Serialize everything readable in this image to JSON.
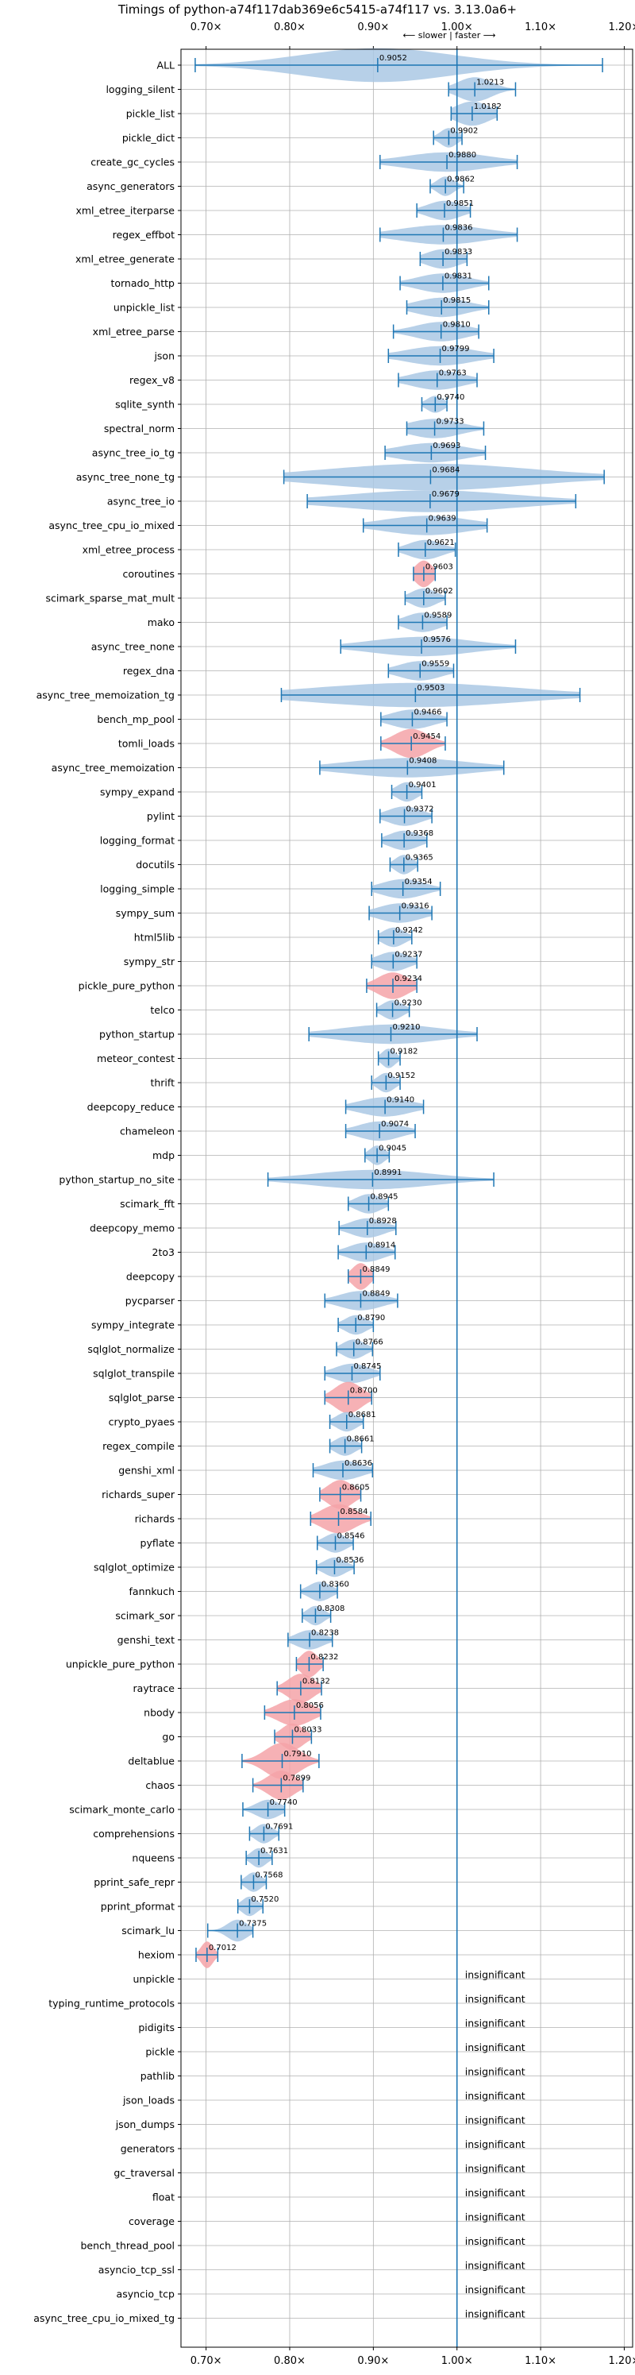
{
  "chart_data": {
    "type": "violin",
    "title": "Timings of python-a74f117dab369e6c5415-a74f117 vs. 3.13.0a6+",
    "xlim": [
      0.67,
      1.21
    ],
    "xticks": [
      0.7,
      0.8,
      0.9,
      1.0,
      1.1,
      1.2
    ],
    "xtick_labels": [
      "0.70×",
      "0.80×",
      "0.90×",
      "1.00×",
      "1.10×",
      "1.20×"
    ],
    "reference_line": 1.0,
    "direction_label": "⟵ slower | faster ⟶",
    "grid": true,
    "colors": {
      "normal": "#aac8e4",
      "slower": "#f4a3a8",
      "line": "#1f77b4",
      "grid": "#b0b0b0"
    },
    "benchmarks": [
      {
        "name": "ALL",
        "mean": 0.9052,
        "lo": 0.687,
        "hi": 1.174,
        "spread": 0.09,
        "width": 0.7,
        "color": "normal",
        "label": "0.9052"
      },
      {
        "name": "logging_silent",
        "mean": 1.0213,
        "lo": 0.99,
        "hi": 1.07,
        "spread": 0.02,
        "width": 0.5,
        "color": "normal",
        "label": "1.0213"
      },
      {
        "name": "pickle_list",
        "mean": 1.0182,
        "lo": 0.993,
        "hi": 1.048,
        "spread": 0.02,
        "width": 0.5,
        "color": "normal",
        "label": "1.0182"
      },
      {
        "name": "pickle_dict",
        "mean": 0.9902,
        "lo": 0.972,
        "hi": 1.006,
        "spread": 0.01,
        "width": 0.4,
        "color": "normal",
        "label": "0.9902"
      },
      {
        "name": "create_gc_cycles",
        "mean": 0.988,
        "lo": 0.908,
        "hi": 1.072,
        "spread": 0.05,
        "width": 0.4,
        "color": "normal",
        "label": "0.9880"
      },
      {
        "name": "async_generators",
        "mean": 0.9862,
        "lo": 0.968,
        "hi": 1.008,
        "spread": 0.01,
        "width": 0.4,
        "color": "normal",
        "label": "0.9862"
      },
      {
        "name": "xml_etree_iterparse",
        "mean": 0.9851,
        "lo": 0.952,
        "hi": 1.016,
        "spread": 0.02,
        "width": 0.4,
        "color": "normal",
        "label": "0.9851"
      },
      {
        "name": "regex_effbot",
        "mean": 0.9836,
        "lo": 0.908,
        "hi": 1.072,
        "spread": 0.05,
        "width": 0.4,
        "color": "normal",
        "label": "0.9836"
      },
      {
        "name": "xml_etree_generate",
        "mean": 0.9833,
        "lo": 0.956,
        "hi": 1.012,
        "spread": 0.02,
        "width": 0.4,
        "color": "normal",
        "label": "0.9833"
      },
      {
        "name": "tornado_http",
        "mean": 0.9831,
        "lo": 0.932,
        "hi": 1.038,
        "spread": 0.03,
        "width": 0.4,
        "color": "normal",
        "label": "0.9831"
      },
      {
        "name": "unpickle_list",
        "mean": 0.9815,
        "lo": 0.94,
        "hi": 1.038,
        "spread": 0.03,
        "width": 0.4,
        "color": "normal",
        "label": "0.9815"
      },
      {
        "name": "xml_etree_parse",
        "mean": 0.981,
        "lo": 0.924,
        "hi": 1.026,
        "spread": 0.03,
        "width": 0.4,
        "color": "normal",
        "label": "0.9810"
      },
      {
        "name": "json",
        "mean": 0.9799,
        "lo": 0.918,
        "hi": 1.044,
        "spread": 0.04,
        "width": 0.4,
        "color": "normal",
        "label": "0.9799"
      },
      {
        "name": "regex_v8",
        "mean": 0.9763,
        "lo": 0.93,
        "hi": 1.024,
        "spread": 0.03,
        "width": 0.4,
        "color": "normal",
        "label": "0.9763"
      },
      {
        "name": "sqlite_synth",
        "mean": 0.974,
        "lo": 0.958,
        "hi": 0.988,
        "spread": 0.01,
        "width": 0.35,
        "color": "normal",
        "label": "0.9740"
      },
      {
        "name": "spectral_norm",
        "mean": 0.9733,
        "lo": 0.94,
        "hi": 1.032,
        "spread": 0.03,
        "width": 0.4,
        "color": "normal",
        "label": "0.9733"
      },
      {
        "name": "async_tree_io_tg",
        "mean": 0.9693,
        "lo": 0.914,
        "hi": 1.034,
        "spread": 0.04,
        "width": 0.4,
        "color": "normal",
        "label": "0.9693"
      },
      {
        "name": "async_tree_none_tg",
        "mean": 0.9684,
        "lo": 0.793,
        "hi": 1.176,
        "spread": 0.12,
        "width": 0.55,
        "color": "normal",
        "label": "0.9684"
      },
      {
        "name": "async_tree_io",
        "mean": 0.9679,
        "lo": 0.821,
        "hi": 1.142,
        "spread": 0.1,
        "width": 0.45,
        "color": "normal",
        "label": "0.9679"
      },
      {
        "name": "async_tree_cpu_io_mixed",
        "mean": 0.9639,
        "lo": 0.888,
        "hi": 1.036,
        "spread": 0.05,
        "width": 0.4,
        "color": "normal",
        "label": "0.9639"
      },
      {
        "name": "xml_etree_process",
        "mean": 0.9621,
        "lo": 0.93,
        "hi": 0.998,
        "spread": 0.02,
        "width": 0.4,
        "color": "normal",
        "label": "0.9621"
      },
      {
        "name": "coroutines",
        "mean": 0.9603,
        "lo": 0.948,
        "hi": 0.974,
        "spread": 0.01,
        "width": 0.55,
        "color": "slower",
        "label": "0.9603"
      },
      {
        "name": "scimark_sparse_mat_mult",
        "mean": 0.9602,
        "lo": 0.938,
        "hi": 0.986,
        "spread": 0.015,
        "width": 0.4,
        "color": "normal",
        "label": "0.9602"
      },
      {
        "name": "mako",
        "mean": 0.9589,
        "lo": 0.93,
        "hi": 0.988,
        "spread": 0.02,
        "width": 0.4,
        "color": "normal",
        "label": "0.9589"
      },
      {
        "name": "async_tree_none",
        "mean": 0.9576,
        "lo": 0.861,
        "hi": 1.07,
        "spread": 0.06,
        "width": 0.4,
        "color": "normal",
        "label": "0.9576"
      },
      {
        "name": "regex_dna",
        "mean": 0.9559,
        "lo": 0.918,
        "hi": 0.996,
        "spread": 0.025,
        "width": 0.4,
        "color": "normal",
        "label": "0.9559"
      },
      {
        "name": "async_tree_memoization_tg",
        "mean": 0.9503,
        "lo": 0.79,
        "hi": 1.147,
        "spread": 0.12,
        "width": 0.5,
        "color": "normal",
        "label": "0.9503"
      },
      {
        "name": "bench_mp_pool",
        "mean": 0.9466,
        "lo": 0.909,
        "hi": 0.988,
        "spread": 0.025,
        "width": 0.4,
        "color": "normal",
        "label": "0.9466"
      },
      {
        "name": "tomli_loads",
        "mean": 0.9454,
        "lo": 0.909,
        "hi": 0.986,
        "spread": 0.02,
        "width": 0.6,
        "color": "slower",
        "label": "0.9454"
      },
      {
        "name": "async_tree_memoization",
        "mean": 0.9408,
        "lo": 0.836,
        "hi": 1.056,
        "spread": 0.07,
        "width": 0.4,
        "color": "normal",
        "label": "0.9408"
      },
      {
        "name": "sympy_expand",
        "mean": 0.9401,
        "lo": 0.922,
        "hi": 0.958,
        "spread": 0.012,
        "width": 0.4,
        "color": "normal",
        "label": "0.9401"
      },
      {
        "name": "pylint",
        "mean": 0.9372,
        "lo": 0.908,
        "hi": 0.97,
        "spread": 0.02,
        "width": 0.4,
        "color": "normal",
        "label": "0.9372"
      },
      {
        "name": "logging_format",
        "mean": 0.9368,
        "lo": 0.91,
        "hi": 0.964,
        "spread": 0.018,
        "width": 0.4,
        "color": "normal",
        "label": "0.9368"
      },
      {
        "name": "docutils",
        "mean": 0.9365,
        "lo": 0.92,
        "hi": 0.953,
        "spread": 0.01,
        "width": 0.4,
        "color": "normal",
        "label": "0.9365"
      },
      {
        "name": "logging_simple",
        "mean": 0.9354,
        "lo": 0.898,
        "hi": 0.98,
        "spread": 0.025,
        "width": 0.4,
        "color": "normal",
        "label": "0.9354"
      },
      {
        "name": "sympy_sum",
        "mean": 0.9316,
        "lo": 0.895,
        "hi": 0.97,
        "spread": 0.025,
        "width": 0.4,
        "color": "normal",
        "label": "0.9316"
      },
      {
        "name": "html5lib",
        "mean": 0.9242,
        "lo": 0.906,
        "hi": 0.946,
        "spread": 0.013,
        "width": 0.4,
        "color": "normal",
        "label": "0.9242"
      },
      {
        "name": "sympy_str",
        "mean": 0.9237,
        "lo": 0.898,
        "hi": 0.952,
        "spread": 0.018,
        "width": 0.4,
        "color": "normal",
        "label": "0.9237"
      },
      {
        "name": "pickle_pure_python",
        "mean": 0.9234,
        "lo": 0.892,
        "hi": 0.952,
        "spread": 0.018,
        "width": 0.55,
        "color": "slower",
        "label": "0.9234"
      },
      {
        "name": "telco",
        "mean": 0.923,
        "lo": 0.904,
        "hi": 0.943,
        "spread": 0.012,
        "width": 0.4,
        "color": "normal",
        "label": "0.9230"
      },
      {
        "name": "python_startup",
        "mean": 0.921,
        "lo": 0.823,
        "hi": 1.024,
        "spread": 0.06,
        "width": 0.4,
        "color": "normal",
        "label": "0.9210"
      },
      {
        "name": "meteor_contest",
        "mean": 0.9182,
        "lo": 0.906,
        "hi": 0.932,
        "spread": 0.008,
        "width": 0.4,
        "color": "normal",
        "label": "0.9182"
      },
      {
        "name": "thrift",
        "mean": 0.9152,
        "lo": 0.898,
        "hi": 0.932,
        "spread": 0.01,
        "width": 0.4,
        "color": "normal",
        "label": "0.9152"
      },
      {
        "name": "deepcopy_reduce",
        "mean": 0.914,
        "lo": 0.867,
        "hi": 0.96,
        "spread": 0.03,
        "width": 0.4,
        "color": "normal",
        "label": "0.9140"
      },
      {
        "name": "chameleon",
        "mean": 0.9074,
        "lo": 0.867,
        "hi": 0.95,
        "spread": 0.025,
        "width": 0.4,
        "color": "normal",
        "label": "0.9074"
      },
      {
        "name": "mdp",
        "mean": 0.9045,
        "lo": 0.89,
        "hi": 0.919,
        "spread": 0.009,
        "width": 0.4,
        "color": "normal",
        "label": "0.9045"
      },
      {
        "name": "python_startup_no_site",
        "mean": 0.8991,
        "lo": 0.774,
        "hi": 1.044,
        "spread": 0.07,
        "width": 0.4,
        "color": "normal",
        "label": "0.8991"
      },
      {
        "name": "scimark_fft",
        "mean": 0.8945,
        "lo": 0.87,
        "hi": 0.918,
        "spread": 0.015,
        "width": 0.4,
        "color": "normal",
        "label": "0.8945"
      },
      {
        "name": "deepcopy_memo",
        "mean": 0.8928,
        "lo": 0.859,
        "hi": 0.927,
        "spread": 0.02,
        "width": 0.4,
        "color": "normal",
        "label": "0.8928"
      },
      {
        "name": "2to3",
        "mean": 0.8914,
        "lo": 0.858,
        "hi": 0.926,
        "spread": 0.02,
        "width": 0.4,
        "color": "normal",
        "label": "0.8914"
      },
      {
        "name": "deepcopy",
        "mean": 0.8849,
        "lo": 0.87,
        "hi": 0.9,
        "spread": 0.01,
        "width": 0.55,
        "color": "slower",
        "label": "0.8849"
      },
      {
        "name": "pycparser",
        "mean": 0.8849,
        "lo": 0.842,
        "hi": 0.929,
        "spread": 0.025,
        "width": 0.4,
        "color": "normal",
        "label": "0.8849"
      },
      {
        "name": "sympy_integrate",
        "mean": 0.879,
        "lo": 0.858,
        "hi": 0.9,
        "spread": 0.013,
        "width": 0.4,
        "color": "normal",
        "label": "0.8790"
      },
      {
        "name": "sqlglot_normalize",
        "mean": 0.8766,
        "lo": 0.856,
        "hi": 0.899,
        "spread": 0.013,
        "width": 0.4,
        "color": "normal",
        "label": "0.8766"
      },
      {
        "name": "sqlglot_transpile",
        "mean": 0.8745,
        "lo": 0.842,
        "hi": 0.908,
        "spread": 0.02,
        "width": 0.4,
        "color": "normal",
        "label": "0.8745"
      },
      {
        "name": "sqlglot_parse",
        "mean": 0.87,
        "lo": 0.842,
        "hi": 0.898,
        "spread": 0.016,
        "width": 0.65,
        "color": "slower",
        "label": "0.8700"
      },
      {
        "name": "crypto_pyaes",
        "mean": 0.8681,
        "lo": 0.848,
        "hi": 0.888,
        "spread": 0.012,
        "width": 0.4,
        "color": "normal",
        "label": "0.8681"
      },
      {
        "name": "regex_compile",
        "mean": 0.8661,
        "lo": 0.848,
        "hi": 0.886,
        "spread": 0.012,
        "width": 0.4,
        "color": "normal",
        "label": "0.8661"
      },
      {
        "name": "genshi_xml",
        "mean": 0.8636,
        "lo": 0.828,
        "hi": 0.899,
        "spread": 0.022,
        "width": 0.4,
        "color": "normal",
        "label": "0.8636"
      },
      {
        "name": "richards_super",
        "mean": 0.8605,
        "lo": 0.836,
        "hi": 0.885,
        "spread": 0.015,
        "width": 0.6,
        "color": "slower",
        "label": "0.8605"
      },
      {
        "name": "richards",
        "mean": 0.8584,
        "lo": 0.825,
        "hi": 0.897,
        "spread": 0.02,
        "width": 0.6,
        "color": "slower",
        "label": "0.8584"
      },
      {
        "name": "pyflate",
        "mean": 0.8546,
        "lo": 0.833,
        "hi": 0.876,
        "spread": 0.013,
        "width": 0.4,
        "color": "normal",
        "label": "0.8546"
      },
      {
        "name": "sqlglot_optimize",
        "mean": 0.8536,
        "lo": 0.832,
        "hi": 0.877,
        "spread": 0.013,
        "width": 0.4,
        "color": "normal",
        "label": "0.8536"
      },
      {
        "name": "fannkuch",
        "mean": 0.836,
        "lo": 0.813,
        "hi": 0.857,
        "spread": 0.013,
        "width": 0.4,
        "color": "normal",
        "label": "0.8360"
      },
      {
        "name": "scimark_sor",
        "mean": 0.8308,
        "lo": 0.815,
        "hi": 0.849,
        "spread": 0.01,
        "width": 0.4,
        "color": "normal",
        "label": "0.8308"
      },
      {
        "name": "genshi_text",
        "mean": 0.8238,
        "lo": 0.798,
        "hi": 0.851,
        "spread": 0.016,
        "width": 0.4,
        "color": "normal",
        "label": "0.8238"
      },
      {
        "name": "unpickle_pure_python",
        "mean": 0.8232,
        "lo": 0.808,
        "hi": 0.84,
        "spread": 0.01,
        "width": 0.55,
        "color": "slower",
        "label": "0.8232"
      },
      {
        "name": "raytrace",
        "mean": 0.8132,
        "lo": 0.785,
        "hi": 0.838,
        "spread": 0.015,
        "width": 0.6,
        "color": "slower",
        "label": "0.8132"
      },
      {
        "name": "nbody",
        "mean": 0.8056,
        "lo": 0.77,
        "hi": 0.837,
        "spread": 0.02,
        "width": 0.55,
        "color": "slower",
        "label": "0.8056"
      },
      {
        "name": "go",
        "mean": 0.8033,
        "lo": 0.782,
        "hi": 0.826,
        "spread": 0.013,
        "width": 0.55,
        "color": "slower",
        "label": "0.8033"
      },
      {
        "name": "deltablue",
        "mean": 0.791,
        "lo": 0.743,
        "hi": 0.835,
        "spread": 0.02,
        "width": 0.75,
        "color": "slower",
        "label": "0.7910"
      },
      {
        "name": "chaos",
        "mean": 0.7899,
        "lo": 0.756,
        "hi": 0.816,
        "spread": 0.016,
        "width": 0.6,
        "color": "slower",
        "label": "0.7899"
      },
      {
        "name": "scimark_monte_carlo",
        "mean": 0.774,
        "lo": 0.744,
        "hi": 0.794,
        "spread": 0.014,
        "width": 0.4,
        "color": "normal",
        "label": "0.7740"
      },
      {
        "name": "comprehensions",
        "mean": 0.7691,
        "lo": 0.752,
        "hi": 0.787,
        "spread": 0.01,
        "width": 0.4,
        "color": "normal",
        "label": "0.7691"
      },
      {
        "name": "nqueens",
        "mean": 0.7631,
        "lo": 0.748,
        "hi": 0.779,
        "spread": 0.009,
        "width": 0.4,
        "color": "normal",
        "label": "0.7631"
      },
      {
        "name": "pprint_safe_repr",
        "mean": 0.7568,
        "lo": 0.742,
        "hi": 0.772,
        "spread": 0.009,
        "width": 0.4,
        "color": "normal",
        "label": "0.7568"
      },
      {
        "name": "pprint_pformat",
        "mean": 0.752,
        "lo": 0.738,
        "hi": 0.768,
        "spread": 0.009,
        "width": 0.4,
        "color": "normal",
        "label": "0.7520"
      },
      {
        "name": "scimark_lu",
        "mean": 0.7375,
        "lo": 0.702,
        "hi": 0.756,
        "spread": 0.012,
        "width": 0.45,
        "color": "normal",
        "label": "0.7375"
      },
      {
        "name": "hexiom",
        "mean": 0.7012,
        "lo": 0.688,
        "hi": 0.714,
        "spread": 0.007,
        "width": 0.55,
        "color": "slower",
        "label": "0.7012"
      },
      {
        "name": "unpickle",
        "label": "insignificant"
      },
      {
        "name": "typing_runtime_protocols",
        "label": "insignificant"
      },
      {
        "name": "pidigits",
        "label": "insignificant"
      },
      {
        "name": "pickle",
        "label": "insignificant"
      },
      {
        "name": "pathlib",
        "label": "insignificant"
      },
      {
        "name": "json_loads",
        "label": "insignificant"
      },
      {
        "name": "json_dumps",
        "label": "insignificant"
      },
      {
        "name": "generators",
        "label": "insignificant"
      },
      {
        "name": "gc_traversal",
        "label": "insignificant"
      },
      {
        "name": "float",
        "label": "insignificant"
      },
      {
        "name": "coverage",
        "label": "insignificant"
      },
      {
        "name": "bench_thread_pool",
        "label": "insignificant"
      },
      {
        "name": "asyncio_tcp_ssl",
        "label": "insignificant"
      },
      {
        "name": "asyncio_tcp",
        "label": "insignificant"
      },
      {
        "name": "async_tree_cpu_io_mixed_tg",
        "label": "insignificant"
      }
    ]
  }
}
